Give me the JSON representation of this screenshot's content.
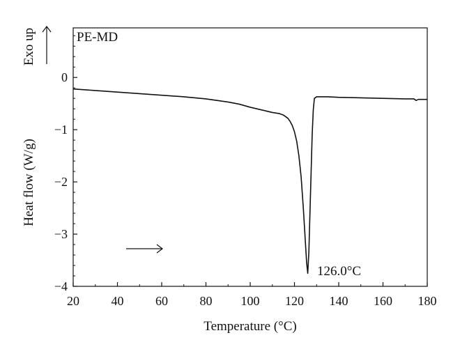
{
  "chart_data": {
    "type": "line",
    "title": "",
    "xlabel": "Temperature (°C)",
    "ylabel": "Heat flow (W/g)",
    "xlim": [
      20,
      180
    ],
    "ylim": [
      -4,
      0.95
    ],
    "xticks": [
      20,
      40,
      60,
      80,
      100,
      120,
      140,
      160,
      180
    ],
    "yticks": [
      0,
      -1,
      -2,
      -3,
      -4
    ],
    "ytick_labels": [
      "0",
      "−1",
      "−2",
      "−3",
      "−4"
    ],
    "grid": false,
    "legend": "none",
    "line_color": "#111111",
    "series": [
      {
        "x": [
          20,
          30,
          40,
          50,
          60,
          70,
          80,
          90,
          95,
          100,
          105,
          110,
          113,
          115,
          117,
          118,
          119,
          120,
          121,
          122,
          123,
          124,
          124.5,
          125,
          125.5,
          126,
          126.5,
          127,
          127.5,
          128,
          128.5,
          129,
          130,
          135,
          140,
          150,
          160,
          170,
          174,
          175,
          176,
          180
        ],
        "y": [
          -0.22,
          -0.25,
          -0.28,
          -0.31,
          -0.34,
          -0.37,
          -0.41,
          -0.47,
          -0.51,
          -0.57,
          -0.62,
          -0.67,
          -0.69,
          -0.72,
          -0.78,
          -0.84,
          -0.92,
          -1.04,
          -1.22,
          -1.5,
          -1.9,
          -2.5,
          -2.85,
          -3.2,
          -3.55,
          -3.75,
          -3.35,
          -2.6,
          -1.85,
          -1.1,
          -0.62,
          -0.4,
          -0.37,
          -0.37,
          -0.38,
          -0.39,
          -0.4,
          -0.41,
          -0.41,
          -0.44,
          -0.42,
          -0.42
        ]
      }
    ],
    "annotations": {
      "sample_label": "PE-MD",
      "exo_label": "Exo up",
      "peak_label": "126.0°C"
    }
  }
}
